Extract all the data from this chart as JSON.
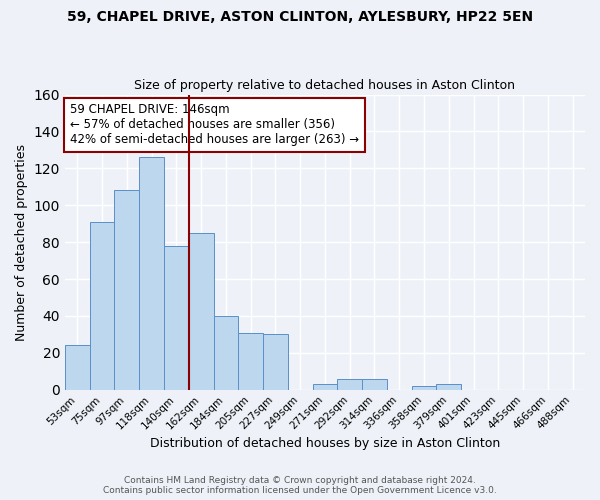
{
  "title1": "59, CHAPEL DRIVE, ASTON CLINTON, AYLESBURY, HP22 5EN",
  "title2": "Size of property relative to detached houses in Aston Clinton",
  "xlabel": "Distribution of detached houses by size in Aston Clinton",
  "ylabel": "Number of detached properties",
  "bar_labels": [
    "53sqm",
    "75sqm",
    "97sqm",
    "118sqm",
    "140sqm",
    "162sqm",
    "184sqm",
    "205sqm",
    "227sqm",
    "249sqm",
    "271sqm",
    "292sqm",
    "314sqm",
    "336sqm",
    "358sqm",
    "379sqm",
    "401sqm",
    "423sqm",
    "445sqm",
    "466sqm",
    "488sqm"
  ],
  "bar_values": [
    24,
    91,
    108,
    126,
    78,
    85,
    40,
    31,
    30,
    0,
    3,
    6,
    6,
    0,
    2,
    3,
    0,
    0,
    0,
    0,
    0
  ],
  "bar_color": "#bdd7ee",
  "bar_edge_color": "#5b8fc9",
  "bg_color": "#eef2f8",
  "grid_color": "#ffffff",
  "vline_x": 4.5,
  "vline_color": "#8b0000",
  "annotation_title": "59 CHAPEL DRIVE: 146sqm",
  "annotation_line1": "← 57% of detached houses are smaller (356)",
  "annotation_line2": "42% of semi-detached houses are larger (263) →",
  "annotation_box_color": "#8b0000",
  "ylim": [
    0,
    160
  ],
  "yticks": [
    0,
    20,
    40,
    60,
    80,
    100,
    120,
    140,
    160
  ],
  "footnote1": "Contains HM Land Registry data © Crown copyright and database right 2024.",
  "footnote2": "Contains public sector information licensed under the Open Government Licence v3.0."
}
